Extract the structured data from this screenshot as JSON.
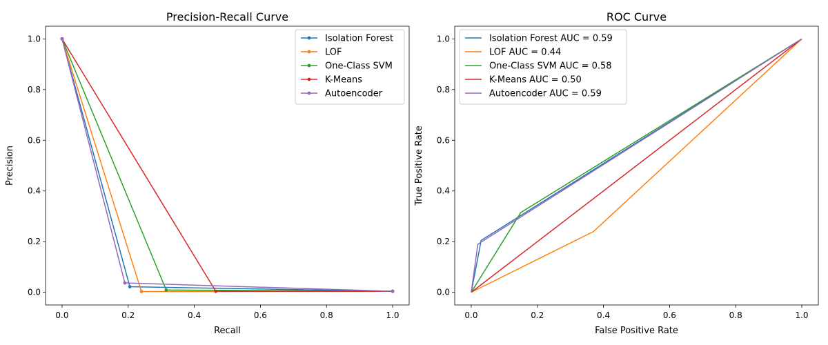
{
  "chart_data": [
    {
      "type": "line",
      "title": "Precision-Recall Curve",
      "xlabel": "Recall",
      "ylabel": "Precision",
      "xlim": [
        -0.05,
        1.05
      ],
      "ylim": [
        -0.05,
        1.05
      ],
      "xticks": [
        "0.0",
        "0.2",
        "0.4",
        "0.6",
        "0.8",
        "1.0"
      ],
      "yticks": [
        "0.0",
        "0.2",
        "0.4",
        "0.6",
        "0.8",
        "1.0"
      ],
      "markers": true,
      "grid": false,
      "legend_position": "top-right",
      "series": [
        {
          "name": "Isolation Forest",
          "color": "#1f77b4",
          "points": [
            [
              0.0,
              1.0
            ],
            [
              0.205,
              0.022
            ],
            [
              1.0,
              0.004
            ]
          ]
        },
        {
          "name": "LOF",
          "color": "#ff7f0e",
          "points": [
            [
              0.0,
              1.0
            ],
            [
              0.24,
              0.003
            ],
            [
              1.0,
              0.004
            ]
          ]
        },
        {
          "name": "One-Class SVM",
          "color": "#2ca02c",
          "points": [
            [
              0.0,
              1.0
            ],
            [
              0.315,
              0.009
            ],
            [
              1.0,
              0.004
            ]
          ]
        },
        {
          "name": "K-Means",
          "color": "#d62728",
          "points": [
            [
              0.0,
              1.0
            ],
            [
              0.465,
              0.004
            ],
            [
              1.0,
              0.004
            ]
          ]
        },
        {
          "name": "Autoencoder",
          "color": "#9467bd",
          "points": [
            [
              0.0,
              1.0
            ],
            [
              0.19,
              0.037
            ],
            [
              1.0,
              0.004
            ]
          ]
        }
      ]
    },
    {
      "type": "line",
      "title": "ROC Curve",
      "xlabel": "False Positive Rate",
      "ylabel": "True Positive Rate",
      "xlim": [
        -0.05,
        1.05
      ],
      "ylim": [
        -0.05,
        1.05
      ],
      "xticks": [
        "0.0",
        "0.2",
        "0.4",
        "0.6",
        "0.8",
        "1.0"
      ],
      "yticks": [
        "0.0",
        "0.2",
        "0.4",
        "0.6",
        "0.8",
        "1.0"
      ],
      "markers": false,
      "grid": false,
      "legend_position": "top-left",
      "series": [
        {
          "name": "Isolation Forest AUC = 0.59",
          "color": "#1f77b4",
          "points": [
            [
              0.0,
              0.0
            ],
            [
              0.03,
              0.205
            ],
            [
              1.0,
              1.0
            ]
          ]
        },
        {
          "name": "LOF AUC = 0.44",
          "color": "#ff7f0e",
          "points": [
            [
              0.0,
              0.0
            ],
            [
              0.37,
              0.24
            ],
            [
              1.0,
              1.0
            ]
          ]
        },
        {
          "name": "One-Class SVM AUC = 0.58",
          "color": "#2ca02c",
          "points": [
            [
              0.0,
              0.0
            ],
            [
              0.15,
              0.315
            ],
            [
              1.0,
              1.0
            ]
          ]
        },
        {
          "name": "K-Means AUC = 0.50",
          "color": "#d62728",
          "points": [
            [
              0.0,
              0.0
            ],
            [
              1.0,
              1.0
            ]
          ]
        },
        {
          "name": "Autoencoder AUC = 0.59",
          "color": "#9467bd",
          "points": [
            [
              0.0,
              0.0
            ],
            [
              0.02,
              0.19
            ],
            [
              1.0,
              1.0
            ]
          ]
        }
      ]
    }
  ]
}
